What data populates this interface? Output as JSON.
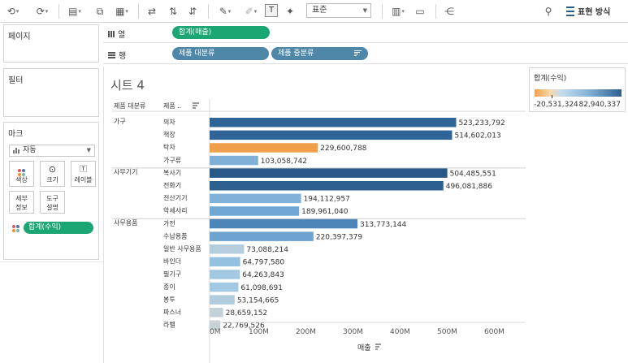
{
  "toolbar": {
    "format_select": "표준",
    "show_me_label": "표현 방식"
  },
  "panes": {
    "pages_title": "페이지",
    "filters_title": "필터",
    "marks_title": "마크",
    "marks_type": "자동",
    "marks_buttons": [
      "색상",
      "크기",
      "레이블",
      "세부\n정보",
      "도구\n설명"
    ],
    "marks_pill": "합계(수익)"
  },
  "shelves": {
    "columns_label": "열",
    "rows_label": "행",
    "columns_pills": [
      "합계(매출)"
    ],
    "rows_pills": [
      "제품 대분류",
      "제품 중분류"
    ]
  },
  "sheet": {
    "title": "시트 4",
    "header_col1": "제품 대분류",
    "header_col2": "제품 ..",
    "x_axis_title": "매출"
  },
  "legend": {
    "title": "합계(수익)",
    "min_label": "-20,531,324",
    "max_label": "82,940,337"
  },
  "colors": {
    "green_pill": "#1ba673",
    "blue_pill": "#4e87a8",
    "dark_blue": "#2c5f8f",
    "orange": "#f0a04b"
  },
  "chart_data": {
    "type": "bar",
    "orientation": "horizontal",
    "x_ticks": [
      "0M",
      "100M",
      "200M",
      "300M",
      "400M",
      "500M",
      "600M"
    ],
    "xlim": [
      0,
      650000000
    ],
    "groups": [
      {
        "name": "가구",
        "rows": [
          {
            "label": "의자",
            "value": 523233792,
            "value_label": "523,233,792",
            "color": "#2f6496"
          },
          {
            "label": "책장",
            "value": 514602013,
            "value_label": "514,602,013",
            "color": "#2f6496"
          },
          {
            "label": "탁자",
            "value": 229600788,
            "value_label": "229,600,788",
            "color": "#f0a04b"
          },
          {
            "label": "가구류",
            "value": 103058742,
            "value_label": "103,058,742",
            "color": "#7fb0d6"
          }
        ]
      },
      {
        "name": "사무기기",
        "rows": [
          {
            "label": "복사기",
            "value": 504485551,
            "value_label": "504,485,551",
            "color": "#285987"
          },
          {
            "label": "전화기",
            "value": 496081886,
            "value_label": "496,081,886",
            "color": "#2d5f8f"
          },
          {
            "label": "전산기기",
            "value": 194112957,
            "value_label": "194,112,957",
            "color": "#80b2d8"
          },
          {
            "label": "악세사리",
            "value": 189961040,
            "value_label": "189,961,040",
            "color": "#6fa6d2"
          }
        ]
      },
      {
        "name": "사무용품",
        "rows": [
          {
            "label": "가전",
            "value": 313773144,
            "value_label": "313,773,144",
            "color": "#4c86b8"
          },
          {
            "label": "수납용품",
            "value": 220397379,
            "value_label": "220,397,379",
            "color": "#6ea3cf"
          },
          {
            "label": "일반 사무용품",
            "value": 73088214,
            "value_label": "73,088,214",
            "color": "#b4cedd"
          },
          {
            "label": "바인더",
            "value": 64797580,
            "value_label": "64,797,580",
            "color": "#94c1df"
          },
          {
            "label": "필기구",
            "value": 64263843,
            "value_label": "64,263,843",
            "color": "#a3c9e2"
          },
          {
            "label": "종이",
            "value": 61098691,
            "value_label": "61,098,691",
            "color": "#a3c9e2"
          },
          {
            "label": "봉투",
            "value": 53154665,
            "value_label": "53,154,665",
            "color": "#b0ccdd"
          },
          {
            "label": "파스너",
            "value": 28659152,
            "value_label": "28,659,152",
            "color": "#c3d1d8"
          },
          {
            "label": "라벨",
            "value": 22769526,
            "value_label": "22,769,526",
            "color": "#c6d1d6"
          }
        ]
      }
    ]
  }
}
